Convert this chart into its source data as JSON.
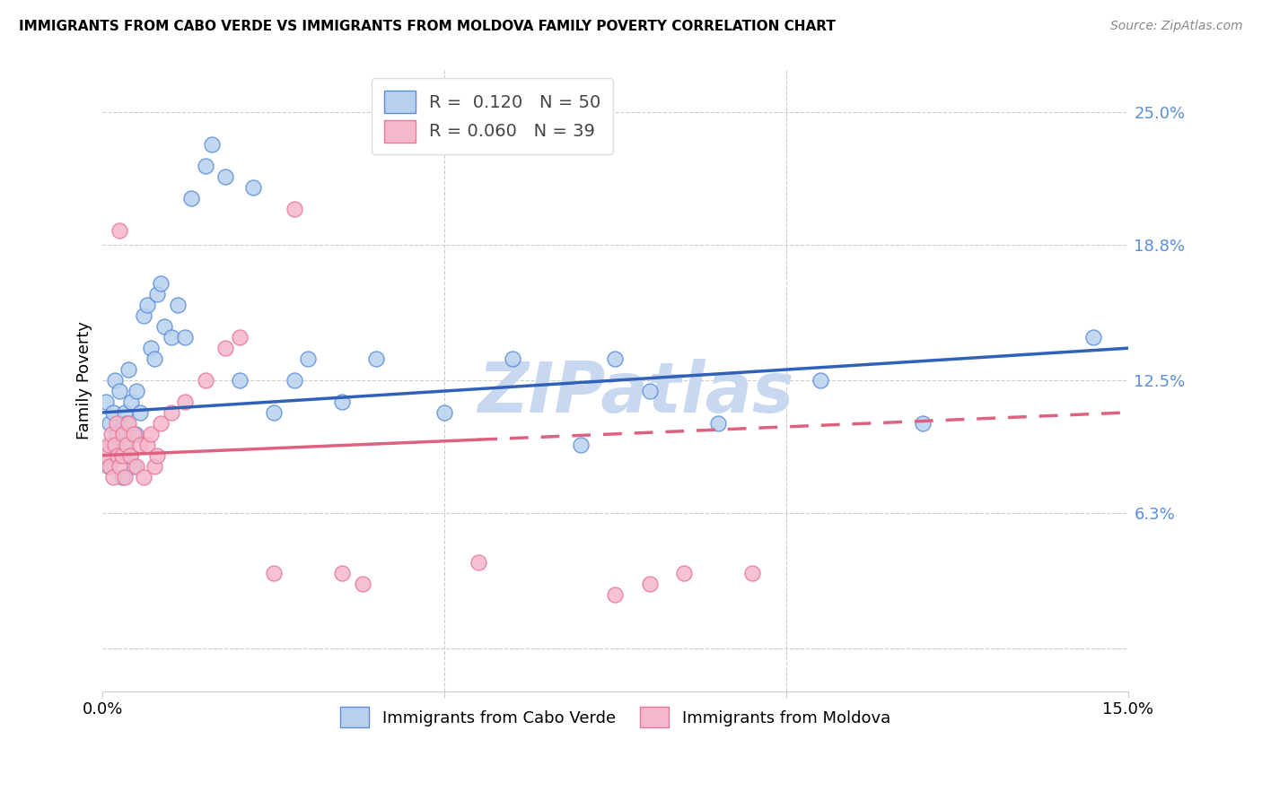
{
  "title": "IMMIGRANTS FROM CABO VERDE VS IMMIGRANTS FROM MOLDOVA FAMILY POVERTY CORRELATION CHART",
  "source": "Source: ZipAtlas.com",
  "ylabel": "Family Poverty",
  "ytick_values": [
    6.3,
    12.5,
    18.8,
    25.0
  ],
  "xmin": 0.0,
  "xmax": 15.0,
  "ymin": -2.0,
  "ymax": 27.0,
  "cabo_verde_R": "0.120",
  "cabo_verde_N": "50",
  "moldova_R": "0.060",
  "moldova_N": "39",
  "cabo_verde_color": "#b8d0ee",
  "moldova_color": "#f5b8cb",
  "cabo_verde_edge_color": "#5b8dd9",
  "moldova_edge_color": "#e8789a",
  "cabo_verde_line_color": "#3060b8",
  "moldova_line_color": "#e06080",
  "legend_label_blue": "Immigrants from Cabo Verde",
  "legend_label_pink": "Immigrants from Moldova",
  "cabo_verde_x": [
    0.05,
    0.08,
    0.1,
    0.12,
    0.15,
    0.18,
    0.2,
    0.22,
    0.25,
    0.28,
    0.3,
    0.32,
    0.35,
    0.38,
    0.4,
    0.42,
    0.45,
    0.48,
    0.5,
    0.55,
    0.6,
    0.65,
    0.7,
    0.75,
    0.8,
    0.85,
    0.9,
    1.0,
    1.1,
    1.2,
    1.3,
    1.5,
    1.6,
    1.8,
    2.0,
    2.2,
    2.5,
    2.8,
    3.0,
    3.5,
    4.0,
    5.0,
    6.0,
    7.0,
    7.5,
    8.0,
    9.0,
    10.5,
    12.0,
    14.5
  ],
  "cabo_verde_y": [
    11.5,
    8.5,
    10.5,
    9.5,
    11.0,
    12.5,
    10.0,
    9.0,
    12.0,
    8.0,
    9.5,
    11.0,
    10.5,
    13.0,
    9.0,
    11.5,
    8.5,
    10.0,
    12.0,
    11.0,
    15.5,
    16.0,
    14.0,
    13.5,
    16.5,
    17.0,
    15.0,
    14.5,
    16.0,
    14.5,
    21.0,
    22.5,
    23.5,
    22.0,
    12.5,
    21.5,
    11.0,
    12.5,
    13.5,
    11.5,
    13.5,
    11.0,
    13.5,
    9.5,
    13.5,
    12.0,
    10.5,
    12.5,
    10.5,
    14.5
  ],
  "moldova_x": [
    0.05,
    0.08,
    0.1,
    0.12,
    0.15,
    0.18,
    0.2,
    0.22,
    0.25,
    0.28,
    0.3,
    0.32,
    0.35,
    0.38,
    0.4,
    0.45,
    0.5,
    0.55,
    0.6,
    0.65,
    0.7,
    0.75,
    0.8,
    0.85,
    1.0,
    1.2,
    1.5,
    1.8,
    2.0,
    2.5,
    3.5,
    3.8,
    5.5,
    7.5,
    8.0,
    8.5,
    9.5,
    2.8,
    0.25
  ],
  "moldova_y": [
    9.0,
    9.5,
    8.5,
    10.0,
    8.0,
    9.5,
    10.5,
    9.0,
    8.5,
    9.0,
    10.0,
    8.0,
    9.5,
    10.5,
    9.0,
    10.0,
    8.5,
    9.5,
    8.0,
    9.5,
    10.0,
    8.5,
    9.0,
    10.5,
    11.0,
    11.5,
    12.5,
    14.0,
    14.5,
    3.5,
    3.5,
    3.0,
    4.0,
    2.5,
    3.0,
    3.5,
    3.5,
    20.5,
    19.5
  ],
  "cabo_verde_trend_x0": 0.0,
  "cabo_verde_trend_y0": 11.0,
  "cabo_verde_trend_x1": 15.0,
  "cabo_verde_trend_y1": 14.0,
  "moldova_trend_x0": 0.0,
  "moldova_trend_y0": 9.0,
  "moldova_trend_x1": 15.0,
  "moldova_trend_y1": 11.0,
  "moldova_solid_end_x": 5.5,
  "watermark": "ZIPatlas",
  "watermark_color": "#c8d8f0",
  "background_color": "#ffffff",
  "grid_color": "#cccccc"
}
